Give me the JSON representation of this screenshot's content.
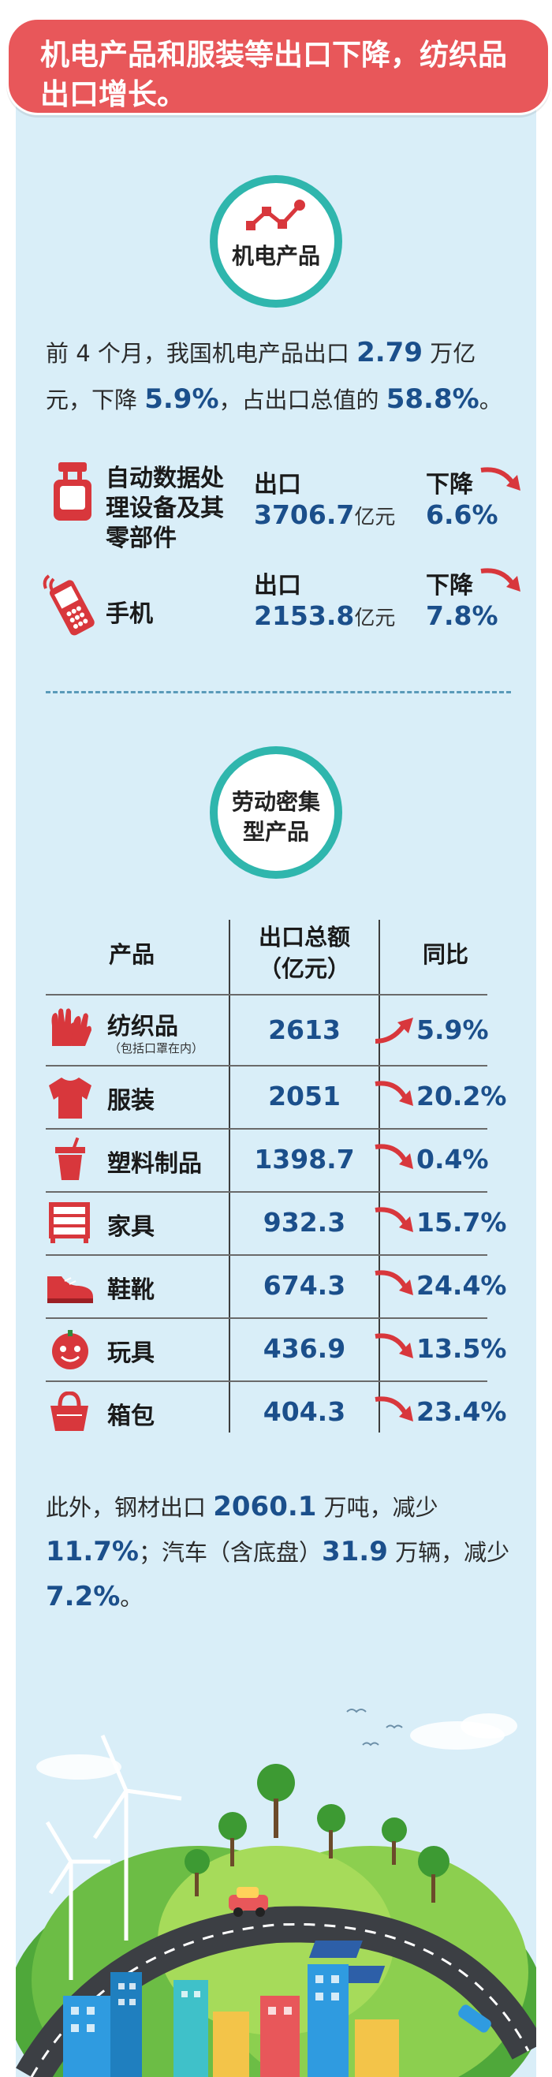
{
  "banner": {
    "text": "机电产品和服装等出口下降，纺织品出口增长。"
  },
  "section1": {
    "title": "机电产品",
    "intro": {
      "p1": "前 4 个月，我国机电产品出口 ",
      "v1": "2.79",
      "p2": " 万亿元，下降 ",
      "v2": "5.9%",
      "p3": "，占出口总值的 ",
      "v3": "58.8%",
      "p4": "。"
    },
    "items": [
      {
        "line1": "自动数据处",
        "line2": "理设备及其",
        "line3": "零部件",
        "export_label": "出口",
        "value": "3706.7",
        "unit": "亿元",
        "down_label": "下降",
        "pct": "6.6%",
        "icon": "battery-plug-icon"
      },
      {
        "line1": "手机",
        "export_label": "出口",
        "value": "2153.8",
        "unit": "亿元",
        "down_label": "下降",
        "pct": "7.8%",
        "icon": "mobile-phone-icon"
      }
    ]
  },
  "section2": {
    "title_line1": "劳动密集",
    "title_line2": "型产品",
    "table": {
      "headers": {
        "product": "产品",
        "export_line1": "出口总额",
        "export_line2": "（亿元）",
        "yoy": "同比"
      },
      "rows": [
        {
          "name": "纺织品",
          "note": "（包括口罩在内）",
          "value": "2613",
          "pct": "5.9%",
          "trend": "up",
          "icon": "gloves-icon"
        },
        {
          "name": "服装",
          "value": "2051",
          "pct": "20.2%",
          "trend": "down",
          "icon": "sweater-icon"
        },
        {
          "name": "塑料制品",
          "value": "1398.7",
          "pct": "0.4%",
          "trend": "down",
          "icon": "cup-icon"
        },
        {
          "name": "家具",
          "value": "932.3",
          "pct": "15.7%",
          "trend": "down",
          "icon": "dresser-icon"
        },
        {
          "name": "鞋靴",
          "value": "674.3",
          "pct": "24.4%",
          "trend": "down",
          "icon": "shoe-icon"
        },
        {
          "name": "玩具",
          "value": "436.9",
          "pct": "13.5%",
          "trend": "down",
          "icon": "toy-ball-icon"
        },
        {
          "name": "箱包",
          "value": "404.3",
          "pct": "23.4%",
          "trend": "down",
          "icon": "handbag-icon"
        }
      ]
    }
  },
  "outro": {
    "p1": "此外，钢材出口 ",
    "v1": "2060.1",
    "p2": " 万吨，减少 ",
    "v2": "11.7%",
    "p3": "；汽车（含底盘）",
    "v3": "31.9",
    "p4": " 万辆，减少 ",
    "v4": "7.2%",
    "p5": "。"
  },
  "colors": {
    "banner": "#e8575a",
    "sky": "#d9eef8",
    "badge_ring": "#2fb6ad",
    "highlight": "#1b4f8b",
    "icon_red": "#d8373c"
  }
}
